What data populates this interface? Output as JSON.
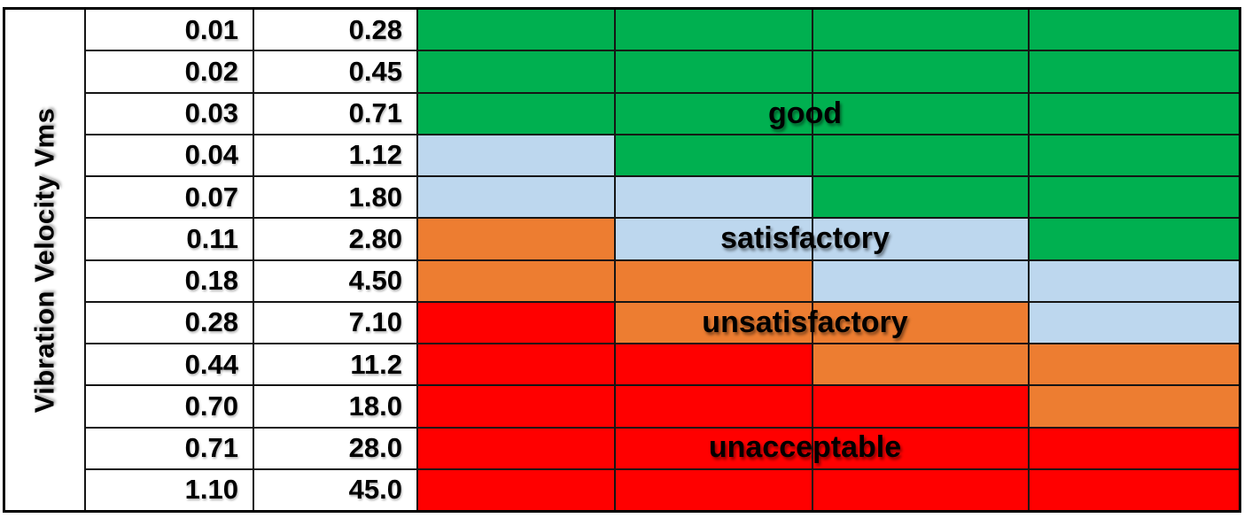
{
  "axis": {
    "label": "Vibration Velocity Vms"
  },
  "zones": {
    "good": {
      "label": "good",
      "color": "#00B050"
    },
    "satisfactory": {
      "label": "satisfactory",
      "color": "#BDD7EE"
    },
    "unsatisfactory": {
      "label": "unsatisfactory",
      "color": "#ED7D31"
    },
    "unacceptable": {
      "label": "unacceptable",
      "color": "#FF0000"
    }
  },
  "overlays": [
    {
      "text": "good",
      "row": 3
    },
    {
      "text": "satisfactory",
      "row": 6
    },
    {
      "text": "unsatisfactory",
      "row": 8
    },
    {
      "text": "unacceptable",
      "row": 11
    }
  ],
  "rows": [
    {
      "v1": "0.01",
      "v2": "0.28",
      "cells": [
        "#00B050",
        "#00B050",
        "#00B050",
        "#00B050"
      ]
    },
    {
      "v1": "0.02",
      "v2": "0.45",
      "cells": [
        "#00B050",
        "#00B050",
        "#00B050",
        "#00B050"
      ]
    },
    {
      "v1": "0.03",
      "v2": "0.71",
      "cells": [
        "#00B050",
        "#00B050",
        "#00B050",
        "#00B050"
      ]
    },
    {
      "v1": "0.04",
      "v2": "1.12",
      "cells": [
        "#BDD7EE",
        "#00B050",
        "#00B050",
        "#00B050"
      ]
    },
    {
      "v1": "0.07",
      "v2": "1.80",
      "cells": [
        "#BDD7EE",
        "#BDD7EE",
        "#00B050",
        "#00B050"
      ]
    },
    {
      "v1": "0.11",
      "v2": "2.80",
      "cells": [
        "#ED7D31",
        "#BDD7EE",
        "#BDD7EE",
        "#00B050"
      ]
    },
    {
      "v1": "0.18",
      "v2": "4.50",
      "cells": [
        "#ED7D31",
        "#ED7D31",
        "#BDD7EE",
        "#BDD7EE"
      ]
    },
    {
      "v1": "0.28",
      "v2": "7.10",
      "cells": [
        "#FF0000",
        "#ED7D31",
        "#ED7D31",
        "#BDD7EE"
      ]
    },
    {
      "v1": "0.44",
      "v2": "11.2",
      "cells": [
        "#FF0000",
        "#FF0000",
        "#ED7D31",
        "#ED7D31"
      ]
    },
    {
      "v1": "0.70",
      "v2": "18.0",
      "cells": [
        "#FF0000",
        "#FF0000",
        "#FF0000",
        "#ED7D31"
      ]
    },
    {
      "v1": "0.71",
      "v2": "28.0",
      "cells": [
        "#FF0000",
        "#FF0000",
        "#FF0000",
        "#FF0000"
      ]
    },
    {
      "v1": "1.10",
      "v2": "45.0",
      "cells": [
        "#FF0000",
        "#FF0000",
        "#FF0000",
        "#FF0000"
      ]
    }
  ],
  "chart_data": {
    "type": "heatmap",
    "title": "",
    "ylabel": "Vibration Velocity Vms",
    "velocity_col1": [
      0.01,
      0.02,
      0.03,
      0.04,
      0.07,
      0.11,
      0.18,
      0.28,
      0.44,
      0.7,
      0.71,
      1.1
    ],
    "velocity_col2": [
      0.28,
      0.45,
      0.71,
      1.12,
      1.8,
      2.8,
      4.5,
      7.1,
      11.2,
      18.0,
      28.0,
      45.0
    ],
    "zone_grid": [
      [
        "good",
        "good",
        "good",
        "good"
      ],
      [
        "good",
        "good",
        "good",
        "good"
      ],
      [
        "good",
        "good",
        "good",
        "good"
      ],
      [
        "satisfactory",
        "good",
        "good",
        "good"
      ],
      [
        "satisfactory",
        "satisfactory",
        "good",
        "good"
      ],
      [
        "unsatisfactory",
        "satisfactory",
        "satisfactory",
        "good"
      ],
      [
        "unsatisfactory",
        "unsatisfactory",
        "satisfactory",
        "satisfactory"
      ],
      [
        "unacceptable",
        "unsatisfactory",
        "unsatisfactory",
        "satisfactory"
      ],
      [
        "unacceptable",
        "unacceptable",
        "unsatisfactory",
        "unsatisfactory"
      ],
      [
        "unacceptable",
        "unacceptable",
        "unacceptable",
        "unsatisfactory"
      ],
      [
        "unacceptable",
        "unacceptable",
        "unacceptable",
        "unacceptable"
      ],
      [
        "unacceptable",
        "unacceptable",
        "unacceptable",
        "unacceptable"
      ]
    ],
    "zone_colors": {
      "good": "#00B050",
      "satisfactory": "#BDD7EE",
      "unsatisfactory": "#ED7D31",
      "unacceptable": "#FF0000"
    },
    "zone_annotations": [
      {
        "text": "good",
        "row_index": 2
      },
      {
        "text": "satisfactory",
        "row_index": 5
      },
      {
        "text": "unsatisfactory",
        "row_index": 7
      },
      {
        "text": "unacceptable",
        "row_index": 10
      }
    ],
    "legend_position": "in-plot",
    "grid": true
  }
}
